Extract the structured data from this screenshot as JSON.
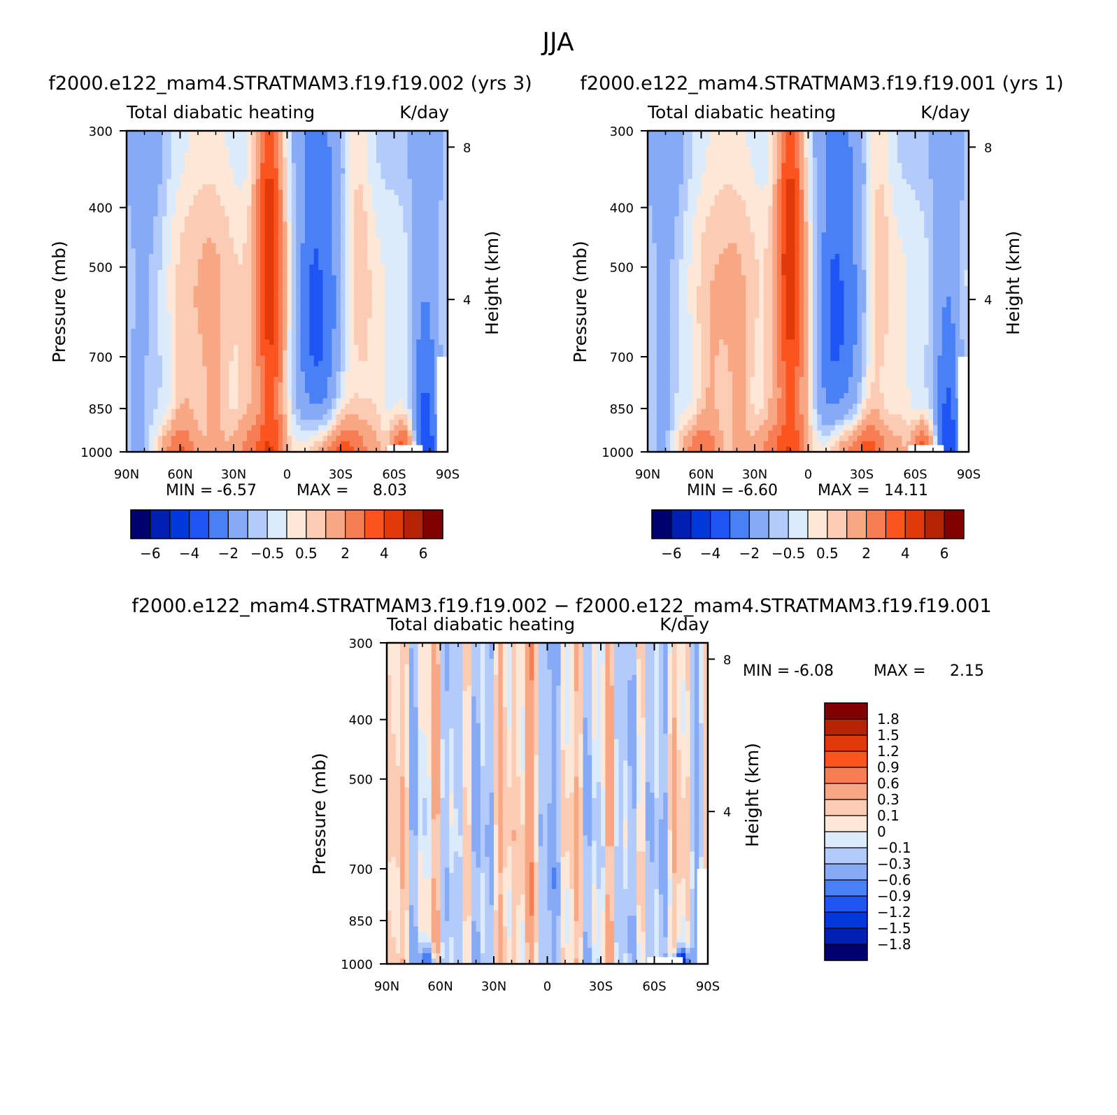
{
  "figure": {
    "main_title": "JJA",
    "case_a": "f2000.e122_mam4.STRATMAM3.f19.f19.002",
    "case_b": "f2000.e122_mam4.STRATMAM3.f19.f19.001",
    "diff_title": "f2000.e122_mam4.STRATMAM3.f19.f19.002 − f2000.e122_mam4.STRATMAM3.f19.f19.001"
  },
  "colors": {
    "full_levels": [
      "#00006e",
      "#0020b4",
      "#0038dc",
      "#1f55f5",
      "#4a80f6",
      "#87aaf7",
      "#b3cbfa",
      "#dcebfb",
      "#fde8d8",
      "#fccbb3",
      "#f8a784",
      "#f77d55",
      "#fb541f",
      "#e03a09",
      "#b52204",
      "#810000"
    ],
    "diff_levels": [
      "#00006e",
      "#0020b4",
      "#0038dc",
      "#1f55f5",
      "#4a80f6",
      "#87aaf7",
      "#b3cbfa",
      "#dcebfb",
      "#fde8d8",
      "#fccbb3",
      "#f8a784",
      "#f77d55",
      "#fb541f",
      "#e03a09",
      "#b52204",
      "#810000"
    ]
  },
  "chart_data": [
    {
      "type": "heatmap",
      "subplot": "top-left",
      "title": "f2000.e122_mam4.STRATMAM3.f19.f19.002 (yrs 3)",
      "left_string": "Total diabatic heating",
      "right_string": "K/day",
      "xlabel": "",
      "ylabel": "Pressure (mb)",
      "y2label": "Height (km)",
      "x_ticks": [
        "90N",
        "60N",
        "30N",
        "0",
        "30S",
        "60S",
        "90S"
      ],
      "x_range": [
        90,
        -90
      ],
      "y_ticks": [
        300,
        400,
        500,
        700,
        850,
        1000
      ],
      "y_range": [
        300,
        1000
      ],
      "y2_ticks": [
        8,
        4
      ],
      "min_label": "MIN =",
      "min_value": "-6.57",
      "max_label": "MAX =",
      "max_value": "8.03",
      "colorbar_labels": [
        "−6",
        "−4",
        "−2",
        "−0.5",
        "0.5",
        "2",
        "4",
        "6"
      ],
      "colorbar_orientation": "horizontal",
      "z_range": [
        -6.57,
        8.03
      ],
      "anomaly_scale": 1.0
    },
    {
      "type": "heatmap",
      "subplot": "top-right",
      "title": "f2000.e122_mam4.STRATMAM3.f19.f19.001 (yrs 1)",
      "left_string": "Total diabatic heating",
      "right_string": "K/day",
      "xlabel": "",
      "ylabel": "Pressure (mb)",
      "y2label": "Height (km)",
      "x_ticks": [
        "90N",
        "60N",
        "30N",
        "0",
        "30S",
        "60S",
        "90S"
      ],
      "x_range": [
        90,
        -90
      ],
      "y_ticks": [
        300,
        400,
        500,
        700,
        850,
        1000
      ],
      "y_range": [
        300,
        1000
      ],
      "y2_ticks": [
        8,
        4
      ],
      "min_label": "MIN =",
      "min_value": "-6.60",
      "max_label": "MAX =",
      "max_value": "14.11",
      "colorbar_labels": [
        "−6",
        "−4",
        "−2",
        "−0.5",
        "0.5",
        "2",
        "4",
        "6"
      ],
      "colorbar_orientation": "horizontal",
      "z_range": [
        -6.6,
        14.11
      ],
      "anomaly_scale": 1.0
    },
    {
      "type": "heatmap",
      "subplot": "bottom-difference",
      "title": "f2000.e122_mam4.STRATMAM3.f19.f19.002 − f2000.e122_mam4.STRATMAM3.f19.f19.001",
      "left_string": "Total diabatic heating",
      "right_string": "K/day",
      "xlabel": "",
      "ylabel": "Pressure (mb)",
      "y2label": "Height (km)",
      "x_ticks": [
        "90N",
        "60N",
        "30N",
        "0",
        "30S",
        "60S",
        "90S"
      ],
      "x_range": [
        90,
        -90
      ],
      "y_ticks": [
        300,
        400,
        500,
        700,
        850,
        1000
      ],
      "y_range": [
        300,
        1000
      ],
      "y2_ticks": [
        8,
        4
      ],
      "min_label": "MIN =",
      "min_value": "-6.08",
      "max_label": "MAX =",
      "max_value": "2.15",
      "colorbar_labels": [
        "1.8",
        "1.5",
        "1.2",
        "0.9",
        "0.6",
        "0.3",
        "0.1",
        "0",
        "−0.1",
        "−0.3",
        "−0.6",
        "−0.9",
        "−1.2",
        "−1.5",
        "−1.8"
      ],
      "colorbar_orientation": "vertical",
      "z_range": [
        -6.08,
        2.15
      ]
    }
  ]
}
